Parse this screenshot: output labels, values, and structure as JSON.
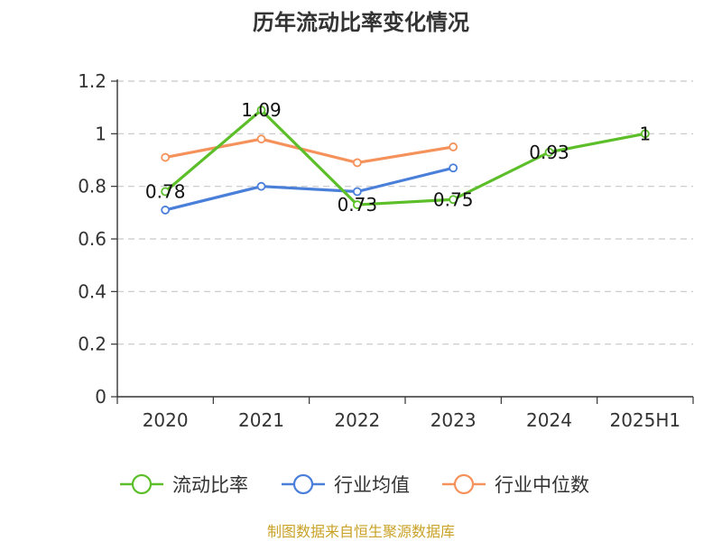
{
  "title": "历年流动比率变化情况",
  "source": "制图数据来自恒生聚源数据库",
  "colors": {
    "current_ratio": "#5cbf2a",
    "industry_mean": "#4a7fd9",
    "industry_median": "#f5925b",
    "axis": "#333333",
    "grid": "#c8c8c8"
  },
  "chart_data": {
    "type": "line",
    "title": "历年流动比率变化情况",
    "xlabel": "",
    "ylabel": "",
    "categories": [
      "2020",
      "2021",
      "2022",
      "2023",
      "2024",
      "2025H1"
    ],
    "ylim": [
      0,
      1.2
    ],
    "yticks": [
      "0",
      "0.2",
      "0.4",
      "0.6",
      "0.8",
      "1",
      "1.2"
    ],
    "grid": true,
    "legend_position": "bottom",
    "series": [
      {
        "name": "流动比率",
        "values": [
          0.78,
          1.09,
          0.73,
          0.75,
          0.93,
          1
        ],
        "labels": [
          "0.78",
          "1.09",
          "0.73",
          "0.75",
          "0.93",
          "1"
        ]
      },
      {
        "name": "行业均值",
        "values": [
          0.71,
          0.8,
          0.78,
          0.87,
          null,
          null
        ]
      },
      {
        "name": "行业中位数",
        "values": [
          0.91,
          0.98,
          0.89,
          0.95,
          null,
          null
        ]
      }
    ]
  }
}
